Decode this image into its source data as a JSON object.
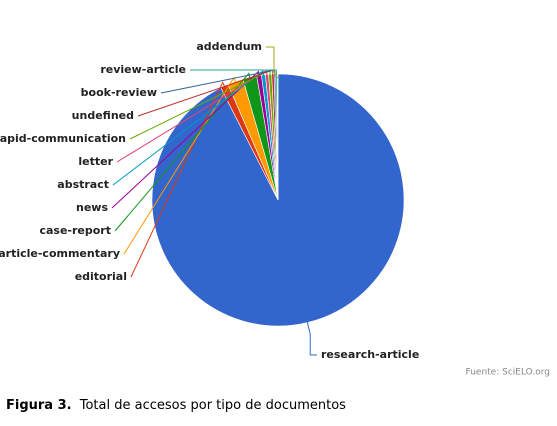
{
  "chart_data": {
    "type": "pie",
    "categories": [
      "research-article",
      "editorial",
      "article-commentary",
      "case-report",
      "news",
      "abstract",
      "letter",
      "rapid-communication",
      "undefined",
      "book-review",
      "review-article",
      "addendum"
    ],
    "values": [
      92.5,
      1.0,
      2.0,
      1.8,
      0.6,
      0.5,
      0.4,
      0.4,
      0.3,
      0.2,
      0.2,
      0.1
    ],
    "colors": [
      "#3366cc",
      "#dc3912",
      "#ff9900",
      "#109618",
      "#990099",
      "#0099c6",
      "#dd4477",
      "#66aa00",
      "#b82e2e",
      "#316395",
      "#22aa99",
      "#aaaa11"
    ],
    "source": "Fuente: SciELO.org"
  },
  "caption": {
    "label": "Figura 3.",
    "text": "Total de accesos por tipo de documentos"
  }
}
